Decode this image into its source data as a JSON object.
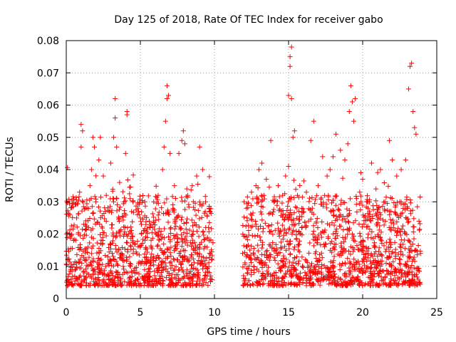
{
  "chart_data": {
    "type": "scatter",
    "title": "Day 125 of 2018, Rate Of TEC Index for receiver gabo",
    "xlabel": "GPS time / hours",
    "ylabel": "ROTI / TECUs",
    "xlim": [
      0,
      25
    ],
    "ylim": [
      0,
      0.08
    ],
    "x_ticks": [
      0,
      5,
      10,
      15,
      20,
      25
    ],
    "y_ticks": [
      0,
      0.01,
      0.02,
      0.03,
      0.04,
      0.05,
      0.06,
      0.07,
      0.08
    ],
    "x_tick_labels": [
      "0",
      "5",
      "10",
      "15",
      "20",
      "25"
    ],
    "y_tick_labels": [
      "0",
      "0.01",
      "0.02",
      "0.03",
      "0.04",
      "0.05",
      "0.06",
      "0.07",
      "0.08"
    ],
    "grid": true,
    "marker": "+",
    "series_color": "#ff0000",
    "data_gap_hours": [
      9.9,
      11.9
    ],
    "series": [
      {
        "name": "ROTI",
        "points": [
          [
            0.1,
            0.012
          ],
          [
            0.3,
            0.009
          ],
          [
            0.5,
            0.018
          ],
          [
            0.7,
            0.025
          ],
          [
            0.9,
            0.033
          ],
          [
            1.0,
            0.047
          ],
          [
            1.0,
            0.054
          ],
          [
            1.1,
            0.052
          ],
          [
            1.3,
            0.028
          ],
          [
            1.5,
            0.022
          ],
          [
            1.6,
            0.035
          ],
          [
            1.7,
            0.04
          ],
          [
            1.8,
            0.05
          ],
          [
            1.9,
            0.047
          ],
          [
            2.0,
            0.03
          ],
          [
            2.2,
            0.043
          ],
          [
            2.3,
            0.05
          ],
          [
            2.5,
            0.038
          ],
          [
            2.7,
            0.032
          ],
          [
            2.9,
            0.027
          ],
          [
            3.0,
            0.042
          ],
          [
            3.2,
            0.05
          ],
          [
            3.3,
            0.056
          ],
          [
            3.3,
            0.062
          ],
          [
            3.4,
            0.047
          ],
          [
            3.6,
            0.036
          ],
          [
            3.9,
            0.03
          ],
          [
            4.0,
            0.045
          ],
          [
            4.1,
            0.057
          ],
          [
            4.1,
            0.058
          ],
          [
            4.3,
            0.031
          ],
          [
            4.5,
            0.03
          ],
          [
            4.8,
            0.026
          ],
          [
            5.0,
            0.025
          ],
          [
            5.3,
            0.03
          ],
          [
            5.6,
            0.024
          ],
          [
            5.9,
            0.03
          ],
          [
            6.2,
            0.032
          ],
          [
            6.5,
            0.04
          ],
          [
            6.6,
            0.047
          ],
          [
            6.7,
            0.055
          ],
          [
            6.8,
            0.062
          ],
          [
            6.8,
            0.066
          ],
          [
            6.9,
            0.063
          ],
          [
            7.0,
            0.045
          ],
          [
            7.3,
            0.035
          ],
          [
            7.6,
            0.045
          ],
          [
            7.8,
            0.049
          ],
          [
            7.9,
            0.052
          ],
          [
            8.0,
            0.048
          ],
          [
            8.2,
            0.032
          ],
          [
            8.5,
            0.035
          ],
          [
            8.8,
            0.038
          ],
          [
            9.0,
            0.047
          ],
          [
            9.2,
            0.04
          ],
          [
            9.4,
            0.03
          ],
          [
            9.6,
            0.022
          ],
          [
            9.8,
            0.012
          ],
          [
            9.7,
            0.006
          ],
          [
            11.9,
            0.014
          ],
          [
            12.0,
            0.03
          ],
          [
            12.2,
            0.025
          ],
          [
            12.5,
            0.033
          ],
          [
            12.8,
            0.035
          ],
          [
            13.0,
            0.04
          ],
          [
            13.2,
            0.042
          ],
          [
            13.5,
            0.037
          ],
          [
            13.8,
            0.049
          ],
          [
            14.0,
            0.03
          ],
          [
            14.3,
            0.035
          ],
          [
            14.6,
            0.032
          ],
          [
            14.8,
            0.038
          ],
          [
            15.0,
            0.041
          ],
          [
            15.0,
            0.063
          ],
          [
            15.1,
            0.072
          ],
          [
            15.1,
            0.075
          ],
          [
            15.2,
            0.078
          ],
          [
            15.2,
            0.062
          ],
          [
            15.3,
            0.05
          ],
          [
            15.4,
            0.052
          ],
          [
            15.6,
            0.032
          ],
          [
            15.9,
            0.028
          ],
          [
            16.2,
            0.033
          ],
          [
            16.5,
            0.049
          ],
          [
            16.7,
            0.055
          ],
          [
            17.0,
            0.035
          ],
          [
            17.3,
            0.044
          ],
          [
            17.6,
            0.038
          ],
          [
            17.8,
            0.04
          ],
          [
            18.0,
            0.044
          ],
          [
            18.2,
            0.051
          ],
          [
            18.5,
            0.046
          ],
          [
            18.8,
            0.043
          ],
          [
            19.0,
            0.048
          ],
          [
            19.1,
            0.058
          ],
          [
            19.2,
            0.066
          ],
          [
            19.3,
            0.061
          ],
          [
            19.4,
            0.055
          ],
          [
            19.5,
            0.062
          ],
          [
            19.8,
            0.033
          ],
          [
            20.0,
            0.037
          ],
          [
            20.3,
            0.03
          ],
          [
            20.6,
            0.042
          ],
          [
            20.9,
            0.034
          ],
          [
            21.2,
            0.04
          ],
          [
            21.5,
            0.03
          ],
          [
            21.8,
            0.049
          ],
          [
            22.0,
            0.043
          ],
          [
            22.3,
            0.038
          ],
          [
            22.6,
            0.04
          ],
          [
            22.9,
            0.043
          ],
          [
            23.1,
            0.065
          ],
          [
            23.2,
            0.072
          ],
          [
            23.3,
            0.073
          ],
          [
            23.4,
            0.058
          ],
          [
            23.5,
            0.053
          ],
          [
            23.6,
            0.051
          ],
          [
            23.8,
            0.024
          ],
          [
            23.9,
            0.014
          ]
        ]
      }
    ]
  }
}
